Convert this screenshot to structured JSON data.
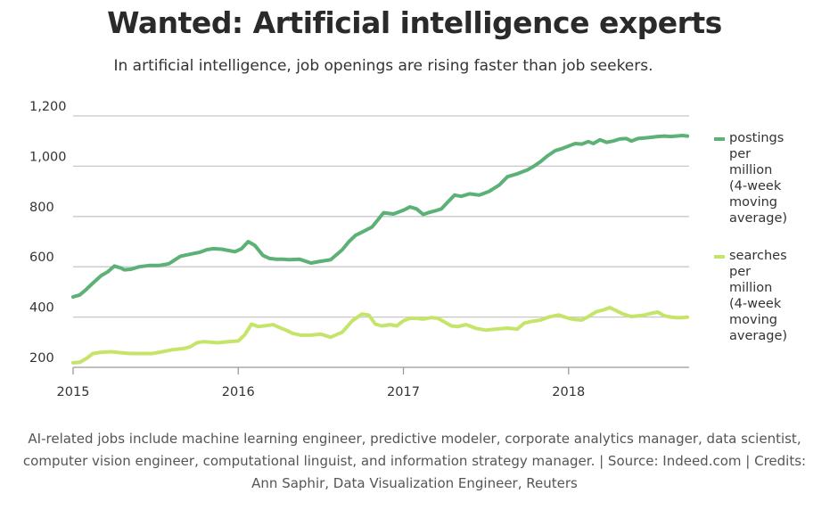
{
  "title": "Wanted: Artificial intelligence experts",
  "subtitle": "In artificial intelligence, job openings are rising faster than job seekers.",
  "caption": "AI-related jobs include machine learning engineer, predictive modeler, corporate analytics manager, data scientist, computer vision engineer, computational linguist, and information strategy manager. | Source: Indeed.com | Credits: Ann Saphir, Data Visualization Engineer, Reuters",
  "colors": {
    "postings": "#5cb176",
    "searches": "#c5e56a",
    "grid": "#c8c8c8"
  },
  "chart_data": {
    "type": "line",
    "title": "Wanted: Artificial intelligence experts",
    "subtitle": "In artificial intelligence, job openings are rising faster than job seekers.",
    "xlabel": "",
    "ylabel": "",
    "xlim": [
      2015.0,
      2018.73
    ],
    "ylim": [
      200,
      1200
    ],
    "y_ticks": [
      200,
      400,
      600,
      800,
      1000,
      1200
    ],
    "y_tick_labels": [
      "200",
      "400",
      "600",
      "800",
      "1,000",
      "1,200"
    ],
    "x_ticks": [
      2015,
      2016,
      2017,
      2018
    ],
    "x_tick_labels": [
      "2015",
      "2016",
      "2017",
      "2018"
    ],
    "grid": true,
    "legend_position": "right",
    "series": [
      {
        "name": "postings per million (4-week moving average)",
        "legend_lines": [
          "postings",
          "per",
          "million",
          "(4-week",
          "moving",
          "average)"
        ],
        "color": "#5cb176",
        "x": [
          2015.0,
          2015.04,
          2015.08,
          2015.12,
          2015.17,
          2015.21,
          2015.25,
          2015.29,
          2015.31,
          2015.35,
          2015.4,
          2015.46,
          2015.52,
          2015.58,
          2015.65,
          2015.71,
          2015.77,
          2015.81,
          2015.85,
          2015.9,
          2015.94,
          2015.98,
          2016.02,
          2016.06,
          2016.1,
          2016.15,
          2016.19,
          2016.23,
          2016.27,
          2016.31,
          2016.37,
          2016.44,
          2016.5,
          2016.56,
          2016.63,
          2016.67,
          2016.71,
          2016.75,
          2016.81,
          2016.88,
          2016.94,
          2017.0,
          2017.04,
          2017.08,
          2017.12,
          2017.15,
          2017.19,
          2017.23,
          2017.27,
          2017.31,
          2017.35,
          2017.4,
          2017.46,
          2017.52,
          2017.58,
          2017.63,
          2017.69,
          2017.75,
          2017.79,
          2017.83,
          2017.87,
          2017.92,
          2017.96,
          2018.0,
          2018.04,
          2018.08,
          2018.12,
          2018.15,
          2018.19,
          2018.23,
          2018.27,
          2018.31,
          2018.35,
          2018.38,
          2018.42,
          2018.46,
          2018.5,
          2018.54,
          2018.58,
          2018.62,
          2018.65,
          2018.69,
          2018.72
        ],
        "values": [
          480,
          488,
          510,
          535,
          565,
          580,
          603,
          595,
          588,
          590,
          600,
          605,
          605,
          612,
          642,
          650,
          658,
          668,
          672,
          670,
          665,
          660,
          672,
          700,
          685,
          645,
          633,
          630,
          630,
          628,
          630,
          615,
          622,
          628,
          668,
          700,
          725,
          738,
          758,
          815,
          810,
          825,
          838,
          830,
          808,
          815,
          822,
          830,
          858,
          885,
          880,
          890,
          885,
          900,
          925,
          958,
          970,
          985,
          1000,
          1018,
          1040,
          1062,
          1070,
          1080,
          1090,
          1088,
          1098,
          1090,
          1105,
          1095,
          1100,
          1108,
          1110,
          1100,
          1110,
          1112,
          1115,
          1118,
          1120,
          1118,
          1120,
          1122,
          1120
        ]
      },
      {
        "name": "searches per million (4-week moving average)",
        "legend_lines": [
          "searches",
          "per",
          "million",
          "(4-week",
          "moving",
          "average)"
        ],
        "color": "#c5e56a",
        "x": [
          2015.0,
          2015.04,
          2015.08,
          2015.12,
          2015.17,
          2015.23,
          2015.29,
          2015.35,
          2015.42,
          2015.48,
          2015.54,
          2015.6,
          2015.67,
          2015.71,
          2015.75,
          2015.79,
          2015.83,
          2015.88,
          2015.94,
          2016.0,
          2016.04,
          2016.08,
          2016.12,
          2016.17,
          2016.21,
          2016.25,
          2016.29,
          2016.33,
          2016.38,
          2016.44,
          2016.5,
          2016.56,
          2016.63,
          2016.69,
          2016.75,
          2016.79,
          2016.83,
          2016.87,
          2016.92,
          2016.96,
          2017.0,
          2017.04,
          2017.08,
          2017.12,
          2017.17,
          2017.21,
          2017.25,
          2017.29,
          2017.33,
          2017.38,
          2017.44,
          2017.5,
          2017.56,
          2017.63,
          2017.69,
          2017.73,
          2017.77,
          2017.83,
          2017.88,
          2017.94,
          2018.0,
          2018.04,
          2018.08,
          2018.12,
          2018.17,
          2018.21,
          2018.25,
          2018.29,
          2018.33,
          2018.38,
          2018.42,
          2018.46,
          2018.5,
          2018.54,
          2018.58,
          2018.62,
          2018.65,
          2018.69,
          2018.72
        ],
        "values": [
          218,
          220,
          235,
          255,
          260,
          262,
          258,
          255,
          255,
          255,
          262,
          270,
          275,
          282,
          298,
          302,
          300,
          298,
          302,
          305,
          330,
          372,
          362,
          366,
          370,
          358,
          348,
          335,
          328,
          328,
          332,
          320,
          340,
          385,
          412,
          408,
          372,
          365,
          370,
          365,
          385,
          395,
          395,
          392,
          398,
          395,
          380,
          365,
          362,
          370,
          355,
          348,
          352,
          356,
          352,
          375,
          382,
          388,
          400,
          408,
          395,
          390,
          388,
          402,
          422,
          428,
          438,
          425,
          412,
          402,
          405,
          408,
          415,
          420,
          405,
          400,
          398,
          398,
          400
        ]
      }
    ]
  }
}
